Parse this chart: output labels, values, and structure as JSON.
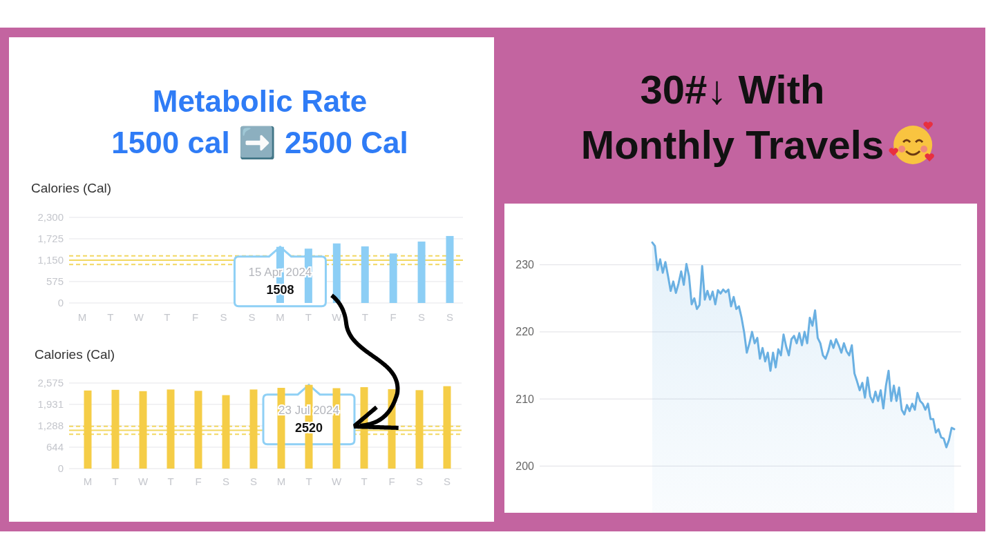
{
  "chart_data": [
    {
      "type": "bar",
      "title": "Metabolic Rate\n1500 cal ➡️ 2500 Cal",
      "ylabel": "Calories (Cal)",
      "categories": [
        "M",
        "T",
        "W",
        "T",
        "F",
        "S",
        "S",
        "M",
        "T",
        "W",
        "T",
        "F",
        "S",
        "S"
      ],
      "values": [
        null,
        null,
        null,
        null,
        null,
        null,
        null,
        1508,
        1460,
        1600,
        1520,
        1330,
        1650,
        1800
      ],
      "value_labels": [
        null,
        null,
        null,
        null,
        null,
        null,
        null,
        "1508",
        null,
        null,
        null,
        null,
        null,
        null
      ],
      "annotations": [
        "15 Apr 2024"
      ],
      "color": "#8ccef5",
      "ylim": [
        0,
        2300
      ],
      "yticks": [
        0,
        {
          "value": 575,
          "label": "575"
        },
        {
          "value": 1150,
          "label": "1,150"
        },
        {
          "value": 1725,
          "label": "1,725"
        },
        {
          "value": 2300,
          "label": "2,300"
        }
      ],
      "grid": "y",
      "ref_lines": [
        {
          "axis": "y",
          "value": 1150,
          "color": "#f2d760",
          "line_style": "solid"
        },
        {
          "axis": "y",
          "value": 1265,
          "color": "#f2d760",
          "line_style": "dashed"
        },
        {
          "axis": "y",
          "value": 1035,
          "color": "#f2d760",
          "line_style": "dashed"
        }
      ]
    },
    {
      "type": "bar",
      "ylabel": "Calories (Cal)",
      "categories": [
        "M",
        "T",
        "W",
        "T",
        "F",
        "S",
        "S",
        "M",
        "T",
        "W",
        "T",
        "F",
        "S",
        "S"
      ],
      "values": [
        2350,
        2370,
        2330,
        2380,
        2340,
        2210,
        2380,
        2430,
        2520,
        2420,
        2450,
        2390,
        2360,
        2480
      ],
      "value_labels": [
        null,
        null,
        null,
        null,
        null,
        null,
        null,
        null,
        "2520",
        null,
        null,
        null,
        null,
        null
      ],
      "annotations": [
        "23 Jul 2024"
      ],
      "color": "#f5cd47",
      "ylim": [
        0,
        2575
      ],
      "yticks": [
        0,
        {
          "value": 644,
          "label": "644"
        },
        {
          "value": 1288,
          "label": "1,288"
        },
        {
          "value": 1931,
          "label": "1,931"
        },
        {
          "value": 2575,
          "label": "2,575"
        }
      ],
      "grid": "y",
      "ref_lines": [
        {
          "axis": "y",
          "value": 1150,
          "color": "#f2d760",
          "line_style": "solid"
        },
        {
          "axis": "y",
          "value": 1270,
          "color": "#f2d760",
          "line_style": "dashed"
        },
        {
          "axis": "y",
          "value": 1035,
          "color": "#f2d760",
          "line_style": "dashed"
        }
      ]
    },
    {
      "type": "area",
      "title": "30#↓ With\nMonthly Travels",
      "color": "#6ab0e2",
      "ylim": [
        193,
        239
      ],
      "yticks": [
        200,
        210,
        220,
        230
      ],
      "grid": "y",
      "tick_labels": "y",
      "categories": [
        null,
        null,
        null,
        null,
        null,
        null,
        null,
        null,
        null,
        null,
        null,
        null,
        null,
        null,
        null,
        null,
        null,
        null,
        null,
        null,
        null,
        null,
        null,
        null,
        null,
        null,
        null,
        null,
        null,
        null,
        null,
        null,
        null,
        null,
        null,
        null,
        null,
        null,
        null,
        null,
        null,
        null,
        null,
        null,
        null,
        null,
        null,
        null,
        null,
        null,
        null,
        null,
        null,
        null,
        null,
        null,
        null,
        null,
        null,
        null,
        null,
        null,
        null,
        null,
        null,
        null,
        null,
        null,
        null,
        null,
        null,
        null,
        null,
        null,
        null,
        null,
        null,
        null,
        null,
        null,
        null,
        null,
        null,
        null,
        null,
        null,
        null,
        null,
        null,
        null,
        null,
        null,
        null,
        null,
        null,
        null,
        null,
        null,
        null,
        null,
        null,
        null,
        null,
        null,
        null,
        null,
        null,
        null,
        null,
        null,
        null,
        null,
        null,
        null,
        null,
        null
      ],
      "values": [
        233.3,
        232.8,
        229.2,
        230.8,
        228.8,
        230.4,
        228.3,
        226.1,
        227.5,
        225.8,
        227.2,
        229.0,
        227.0,
        230.1,
        228.3,
        224.1,
        225.0,
        223.4,
        224.0,
        229.8,
        224.8,
        226.1,
        224.8,
        226.0,
        224.1,
        226.2,
        225.7,
        226.3,
        225.9,
        226.3,
        223.8,
        225.2,
        223.4,
        223.8,
        222.1,
        219.9,
        216.9,
        218.3,
        220.0,
        218.3,
        219.1,
        216.0,
        217.6,
        215.6,
        216.9,
        214.2,
        216.9,
        214.7,
        217.4,
        216.5,
        219.6,
        217.8,
        216.5,
        218.9,
        219.4,
        218.3,
        219.8,
        218.0,
        220.0,
        218.3,
        222.1,
        220.9,
        223.2,
        219.1,
        218.3,
        216.5,
        216.0,
        217.1,
        218.7,
        217.6,
        218.9,
        218.0,
        216.9,
        218.3,
        217.1,
        216.5,
        218.0,
        213.8,
        212.6,
        211.3,
        212.4,
        210.2,
        213.2,
        210.4,
        209.5,
        211.1,
        209.7,
        211.3,
        208.6,
        212.0,
        214.2,
        209.7,
        212.0,
        209.7,
        211.7,
        208.4,
        207.7,
        209.1,
        208.2,
        209.3,
        208.4,
        210.9,
        209.7,
        209.3,
        208.4,
        209.3,
        207.0,
        207.0,
        205.0,
        205.5,
        204.3,
        204.1,
        202.8,
        203.9,
        205.7,
        205.5
      ]
    }
  ]
}
